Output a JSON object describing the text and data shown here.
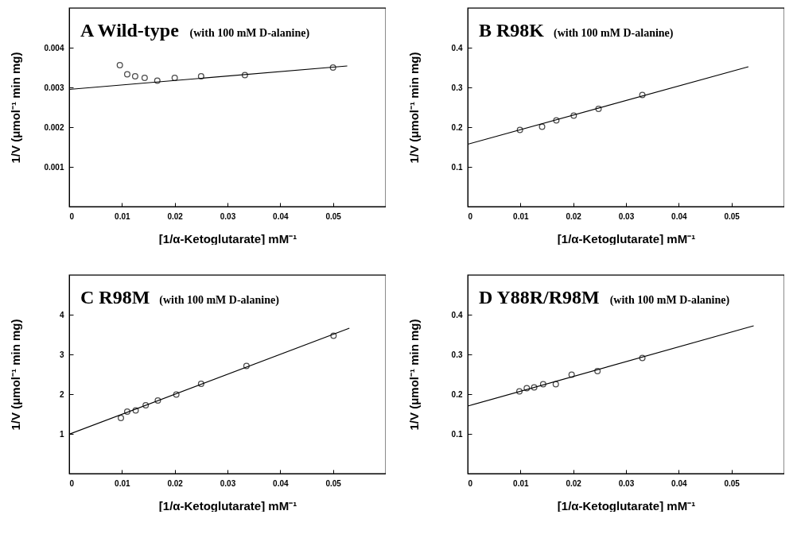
{
  "chart_data": [
    {
      "type": "scatter",
      "title": "A Wild-type",
      "subtitle": "(with 100 mM D-alanine)",
      "xlabel": "[1/α-Ketoglutarate] mM⁻¹",
      "ylabel": "1/V (μmol⁻¹ min mg)",
      "xlim": [
        0,
        0.06
      ],
      "ylim": [
        0,
        0.005
      ],
      "xticks": [
        0,
        0.01,
        0.02,
        0.03,
        0.04,
        0.05
      ],
      "yticks": [
        0.001,
        0.002,
        0.003,
        0.004
      ],
      "series": [
        {
          "type": "scatter",
          "marker": "circle",
          "color": "#000000",
          "x": [
            0.0096,
            0.011,
            0.0125,
            0.0143,
            0.0167,
            0.02,
            0.025,
            0.0333,
            0.05
          ],
          "values": [
            0.00356,
            0.00333,
            0.00328,
            0.00324,
            0.00317,
            0.00324,
            0.00328,
            0.00331,
            0.0035
          ]
        },
        {
          "type": "line",
          "marker": "none",
          "color": "#000000",
          "x": [
            0,
            0.0527
          ],
          "values": [
            0.00295,
            0.00354
          ]
        }
      ]
    },
    {
      "type": "scatter",
      "title": "B R98K",
      "subtitle": "(with 100 mM D-alanine)",
      "xlabel": "[1/α-Ketoglutarate] mM⁻¹",
      "ylabel": "1/V (μmol⁻¹ min mg)",
      "xlim": [
        0,
        0.06
      ],
      "ylim": [
        0,
        0.5
      ],
      "xticks": [
        0,
        0.01,
        0.02,
        0.03,
        0.04,
        0.05
      ],
      "yticks": [
        0.1,
        0.2,
        0.3,
        0.4
      ],
      "series": [
        {
          "type": "scatter",
          "marker": "circle",
          "color": "#000000",
          "x": [
            0.0099,
            0.0141,
            0.0168,
            0.0201,
            0.0248,
            0.0331
          ],
          "values": [
            0.193,
            0.201,
            0.217,
            0.229,
            0.246,
            0.281
          ]
        },
        {
          "type": "line",
          "marker": "none",
          "color": "#000000",
          "x": [
            0,
            0.0532
          ],
          "values": [
            0.157,
            0.352
          ]
        }
      ]
    },
    {
      "type": "scatter",
      "title": "C R98M",
      "subtitle": "(with 100 mM D-alanine)",
      "xlabel": "[1/α-Ketoglutarate] mM⁻¹",
      "ylabel": "1/V (μmol⁻¹ min mg)",
      "xlim": [
        0,
        0.06
      ],
      "ylim": [
        0,
        5
      ],
      "xticks": [
        0,
        0.01,
        0.02,
        0.03,
        0.04,
        0.05
      ],
      "yticks": [
        1,
        2,
        3,
        4
      ],
      "series": [
        {
          "type": "scatter",
          "marker": "circle",
          "color": "#000000",
          "x": [
            0.0098,
            0.011,
            0.0126,
            0.0145,
            0.0168,
            0.0203,
            0.025,
            0.0336,
            0.0501
          ],
          "values": [
            1.4,
            1.56,
            1.59,
            1.72,
            1.84,
            1.99,
            2.26,
            2.71,
            3.47
          ]
        },
        {
          "type": "line",
          "marker": "none",
          "color": "#000000",
          "x": [
            0,
            0.0531
          ],
          "values": [
            0.99,
            3.66
          ]
        }
      ]
    },
    {
      "type": "scatter",
      "title": "D Y88R/R98M",
      "subtitle": "(with 100 mM D-alanine)",
      "xlabel": "[1/α-Ketoglutarate] mM⁻¹",
      "ylabel": "1/V (μmol⁻¹ min mg)",
      "xlim": [
        0,
        0.06
      ],
      "ylim": [
        0,
        0.5
      ],
      "xticks": [
        0,
        0.01,
        0.02,
        0.03,
        0.04,
        0.05
      ],
      "yticks": [
        0.1,
        0.2,
        0.3,
        0.4
      ],
      "series": [
        {
          "type": "scatter",
          "marker": "circle",
          "color": "#000000",
          "x": [
            0.0098,
            0.0112,
            0.0126,
            0.0143,
            0.0167,
            0.0197,
            0.0246,
            0.0331
          ],
          "values": [
            0.207,
            0.215,
            0.217,
            0.225,
            0.225,
            0.249,
            0.258,
            0.291
          ]
        },
        {
          "type": "line",
          "marker": "none",
          "color": "#000000",
          "x": [
            0,
            0.0542
          ],
          "values": [
            0.17,
            0.372
          ]
        }
      ]
    }
  ]
}
